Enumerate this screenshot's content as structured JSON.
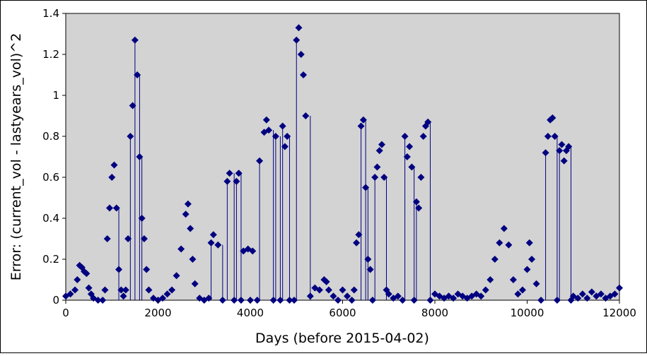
{
  "chart_data": {
    "type": "scatter",
    "title": "",
    "xlabel": "Days (before 2015-04-02)",
    "ylabel": "Error: (current_vol - lastyears_vol)^2",
    "xlim": [
      0,
      12000
    ],
    "ylim": [
      0,
      1.4
    ],
    "x_ticks": [
      0,
      2000,
      4000,
      6000,
      8000,
      10000,
      12000
    ],
    "y_ticks": [
      0,
      0.2,
      0.4,
      0.6,
      0.8,
      1,
      1.2,
      1.4
    ],
    "y_tick_labels": [
      "0",
      "0.2",
      "0.4",
      "0.6",
      "0.8",
      "1",
      "1.2",
      "1.4"
    ],
    "grid": false,
    "legend": "none",
    "plot_background": "#d3d3d3",
    "marker": "diamond",
    "marker_color": "#000080",
    "series": [
      {
        "points": [
          [
            0,
            0.02
          ],
          [
            100,
            0.03
          ],
          [
            200,
            0.05
          ],
          [
            250,
            0.1
          ],
          [
            300,
            0.17
          ],
          [
            350,
            0.16
          ],
          [
            400,
            0.14
          ],
          [
            450,
            0.13
          ],
          [
            500,
            0.06
          ],
          [
            550,
            0.03
          ],
          [
            600,
            0.01
          ],
          [
            700,
            0.0
          ],
          [
            800,
            0.0
          ],
          [
            850,
            0.05
          ],
          [
            900,
            0.3
          ],
          [
            950,
            0.45
          ],
          [
            1000,
            0.6
          ],
          [
            1050,
            0.66
          ],
          [
            1100,
            0.45
          ],
          [
            1150,
            0.15
          ],
          [
            1200,
            0.05
          ],
          [
            1250,
            0.02
          ],
          [
            1300,
            0.05
          ],
          [
            1350,
            0.3
          ],
          [
            1400,
            0.8
          ],
          [
            1450,
            0.95
          ],
          [
            1500,
            1.27
          ],
          [
            1550,
            1.1
          ],
          [
            1600,
            0.7
          ],
          [
            1650,
            0.4
          ],
          [
            1700,
            0.3
          ],
          [
            1750,
            0.15
          ],
          [
            1800,
            0.05
          ],
          [
            1900,
            0.01
          ],
          [
            2000,
            0.0
          ],
          [
            2100,
            0.01
          ],
          [
            2200,
            0.03
          ],
          [
            2300,
            0.05
          ],
          [
            2400,
            0.12
          ],
          [
            2500,
            0.25
          ],
          [
            2600,
            0.42
          ],
          [
            2650,
            0.47
          ],
          [
            2700,
            0.35
          ],
          [
            2750,
            0.2
          ],
          [
            2800,
            0.08
          ],
          [
            2900,
            0.01
          ],
          [
            3000,
            0.0
          ],
          [
            3100,
            0.01
          ],
          [
            3150,
            0.28
          ],
          [
            3200,
            0.32
          ],
          [
            3300,
            0.27
          ],
          [
            3400,
            0.0
          ],
          [
            3500,
            0.58
          ],
          [
            3550,
            0.62
          ],
          [
            3650,
            0.0
          ],
          [
            3700,
            0.58
          ],
          [
            3750,
            0.62
          ],
          [
            3800,
            0.0
          ],
          [
            3850,
            0.24
          ],
          [
            3950,
            0.25
          ],
          [
            4000,
            0.0
          ],
          [
            4050,
            0.24
          ],
          [
            4150,
            0.0
          ],
          [
            4200,
            0.68
          ],
          [
            4300,
            0.82
          ],
          [
            4350,
            0.88
          ],
          [
            4400,
            0.83
          ],
          [
            4500,
            0.0
          ],
          [
            4550,
            0.8
          ],
          [
            4650,
            0.0
          ],
          [
            4700,
            0.85
          ],
          [
            4750,
            0.75
          ],
          [
            4800,
            0.8
          ],
          [
            4850,
            0.0
          ],
          [
            4950,
            0.0
          ],
          [
            5000,
            1.27
          ],
          [
            5050,
            1.33
          ],
          [
            5100,
            1.2
          ],
          [
            5150,
            1.1
          ],
          [
            5200,
            0.9
          ],
          [
            5300,
            0.02
          ],
          [
            5400,
            0.06
          ],
          [
            5500,
            0.05
          ],
          [
            5600,
            0.1
          ],
          [
            5650,
            0.09
          ],
          [
            5700,
            0.05
          ],
          [
            5800,
            0.02
          ],
          [
            5900,
            0.0
          ],
          [
            6000,
            0.05
          ],
          [
            6100,
            0.02
          ],
          [
            6200,
            0.0
          ],
          [
            6250,
            0.05
          ],
          [
            6300,
            0.28
          ],
          [
            6350,
            0.32
          ],
          [
            6400,
            0.85
          ],
          [
            6450,
            0.88
          ],
          [
            6500,
            0.55
          ],
          [
            6550,
            0.2
          ],
          [
            6600,
            0.15
          ],
          [
            6650,
            0.0
          ],
          [
            6700,
            0.6
          ],
          [
            6750,
            0.65
          ],
          [
            6800,
            0.73
          ],
          [
            6850,
            0.76
          ],
          [
            6900,
            0.6
          ],
          [
            6950,
            0.05
          ],
          [
            7000,
            0.03
          ],
          [
            7100,
            0.01
          ],
          [
            7200,
            0.02
          ],
          [
            7300,
            0.0
          ],
          [
            7350,
            0.8
          ],
          [
            7400,
            0.7
          ],
          [
            7450,
            0.75
          ],
          [
            7500,
            0.65
          ],
          [
            7550,
            0.0
          ],
          [
            7600,
            0.48
          ],
          [
            7650,
            0.45
          ],
          [
            7700,
            0.6
          ],
          [
            7750,
            0.8
          ],
          [
            7800,
            0.85
          ],
          [
            7850,
            0.87
          ],
          [
            7900,
            0.0
          ],
          [
            8000,
            0.03
          ],
          [
            8100,
            0.02
          ],
          [
            8200,
            0.01
          ],
          [
            8300,
            0.02
          ],
          [
            8400,
            0.01
          ],
          [
            8500,
            0.03
          ],
          [
            8600,
            0.02
          ],
          [
            8700,
            0.01
          ],
          [
            8800,
            0.02
          ],
          [
            8900,
            0.03
          ],
          [
            9000,
            0.02
          ],
          [
            9100,
            0.05
          ],
          [
            9200,
            0.1
          ],
          [
            9300,
            0.2
          ],
          [
            9400,
            0.28
          ],
          [
            9500,
            0.35
          ],
          [
            9600,
            0.27
          ],
          [
            9700,
            0.1
          ],
          [
            9800,
            0.03
          ],
          [
            9900,
            0.05
          ],
          [
            10000,
            0.15
          ],
          [
            10050,
            0.28
          ],
          [
            10100,
            0.2
          ],
          [
            10200,
            0.08
          ],
          [
            10300,
            0.0
          ],
          [
            10400,
            0.72
          ],
          [
            10450,
            0.8
          ],
          [
            10500,
            0.88
          ],
          [
            10550,
            0.89
          ],
          [
            10600,
            0.8
          ],
          [
            10650,
            0.0
          ],
          [
            10700,
            0.73
          ],
          [
            10750,
            0.76
          ],
          [
            10800,
            0.68
          ],
          [
            10850,
            0.73
          ],
          [
            10900,
            0.75
          ],
          [
            10950,
            0.0
          ],
          [
            11000,
            0.02
          ],
          [
            11100,
            0.01
          ],
          [
            11200,
            0.03
          ],
          [
            11300,
            0.01
          ],
          [
            11400,
            0.04
          ],
          [
            11500,
            0.02
          ],
          [
            11600,
            0.03
          ],
          [
            11700,
            0.01
          ],
          [
            11800,
            0.02
          ],
          [
            11900,
            0.03
          ],
          [
            12000,
            0.06
          ]
        ]
      }
    ]
  }
}
